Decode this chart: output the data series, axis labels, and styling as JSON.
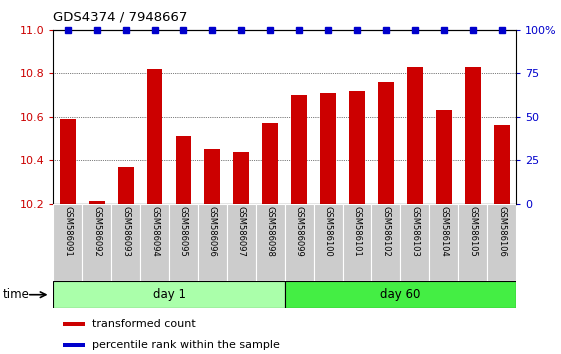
{
  "title": "GDS4374 / 7948667",
  "samples": [
    "GSM586091",
    "GSM586092",
    "GSM586093",
    "GSM586094",
    "GSM586095",
    "GSM586096",
    "GSM586097",
    "GSM586098",
    "GSM586099",
    "GSM586100",
    "GSM586101",
    "GSM586102",
    "GSM586103",
    "GSM586104",
    "GSM586105",
    "GSM586106"
  ],
  "bar_values": [
    10.59,
    10.21,
    10.37,
    10.82,
    10.51,
    10.45,
    10.44,
    10.57,
    10.7,
    10.71,
    10.72,
    10.76,
    10.83,
    10.63,
    10.83,
    10.56
  ],
  "percentile_values": [
    100,
    100,
    100,
    100,
    100,
    100,
    100,
    100,
    100,
    100,
    100,
    100,
    100,
    100,
    100,
    100
  ],
  "bar_color": "#cc0000",
  "percentile_color": "#0000cc",
  "ylim_left": [
    10.2,
    11.0
  ],
  "ylim_right": [
    0,
    100
  ],
  "yticks_left": [
    10.2,
    10.4,
    10.6,
    10.8,
    11.0
  ],
  "yticks_right": [
    0,
    25,
    50,
    75,
    100
  ],
  "ytick_labels_right": [
    "0",
    "25",
    "50",
    "75",
    "100%"
  ],
  "groups": [
    {
      "label": "day 1",
      "start": 0,
      "end": 7,
      "color": "#aaffaa"
    },
    {
      "label": "day 60",
      "start": 8,
      "end": 15,
      "color": "#44ee44"
    }
  ],
  "legend_items": [
    {
      "label": "transformed count",
      "color": "#cc0000"
    },
    {
      "label": "percentile rank within the sample",
      "color": "#0000cc"
    }
  ],
  "xlabel_time": "time",
  "bar_width": 0.55,
  "sample_bg_color": "#cccccc",
  "sample_border_color": "#ffffff",
  "fig_width": 5.61,
  "fig_height": 3.54,
  "dpi": 100
}
